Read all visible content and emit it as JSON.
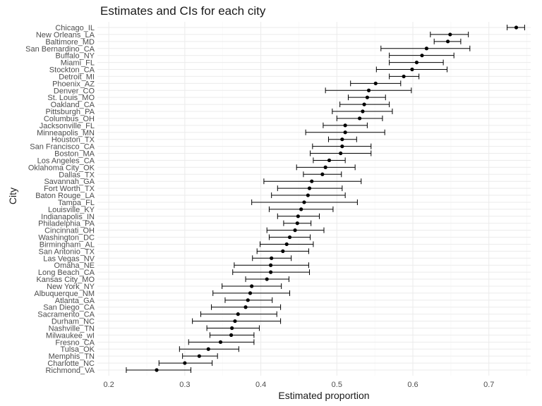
{
  "chart_data": {
    "type": "scatter",
    "title": "Estimates and CIs for each city",
    "xlabel": "Estimated proportion",
    "ylabel": "City",
    "xlim": [
      0.185,
      0.755
    ],
    "xticks": [
      "0.2",
      "0.3",
      "0.4",
      "0.5",
      "0.6",
      "0.7"
    ],
    "xtick_values": [
      0.2,
      0.3,
      0.4,
      0.5,
      0.6,
      0.7
    ],
    "grid": true,
    "points": [
      {
        "city": "Chicago_IL",
        "estimate": 0.736,
        "lo": 0.724,
        "hi": 0.747
      },
      {
        "city": "New Orleans_LA",
        "estimate": 0.649,
        "lo": 0.623,
        "hi": 0.673
      },
      {
        "city": "Baltimore_MD",
        "estimate": 0.646,
        "lo": 0.628,
        "hi": 0.663
      },
      {
        "city": "San Bernardino_CA",
        "estimate": 0.618,
        "lo": 0.558,
        "hi": 0.675
      },
      {
        "city": "Buffalo_NY",
        "estimate": 0.612,
        "lo": 0.569,
        "hi": 0.654
      },
      {
        "city": "Miami_FL",
        "estimate": 0.605,
        "lo": 0.569,
        "hi": 0.64
      },
      {
        "city": "Stockton_CA",
        "estimate": 0.599,
        "lo": 0.552,
        "hi": 0.645
      },
      {
        "city": "Detroit_MI",
        "estimate": 0.588,
        "lo": 0.569,
        "hi": 0.608
      },
      {
        "city": "Phoenix_AZ",
        "estimate": 0.551,
        "lo": 0.518,
        "hi": 0.584
      },
      {
        "city": "Denver_CO",
        "estimate": 0.542,
        "lo": 0.485,
        "hi": 0.598
      },
      {
        "city": "St. Louis_MO",
        "estimate": 0.54,
        "lo": 0.515,
        "hi": 0.564
      },
      {
        "city": "Oakland_CA",
        "estimate": 0.536,
        "lo": 0.504,
        "hi": 0.569
      },
      {
        "city": "Pittsburgh_PA",
        "estimate": 0.534,
        "lo": 0.494,
        "hi": 0.573
      },
      {
        "city": "Columbus_OH",
        "estimate": 0.53,
        "lo": 0.5,
        "hi": 0.56
      },
      {
        "city": "Jacksonville_FL",
        "estimate": 0.511,
        "lo": 0.482,
        "hi": 0.54
      },
      {
        "city": "Minneapolis_MN",
        "estimate": 0.511,
        "lo": 0.459,
        "hi": 0.563
      },
      {
        "city": "Houston_TX",
        "estimate": 0.507,
        "lo": 0.489,
        "hi": 0.526
      },
      {
        "city": "San Francisco_CA",
        "estimate": 0.507,
        "lo": 0.468,
        "hi": 0.545
      },
      {
        "city": "Boston_MA",
        "estimate": 0.505,
        "lo": 0.465,
        "hi": 0.545
      },
      {
        "city": "Los Angeles_CA",
        "estimate": 0.49,
        "lo": 0.469,
        "hi": 0.511
      },
      {
        "city": "Oklahoma City_OK",
        "estimate": 0.485,
        "lo": 0.447,
        "hi": 0.524
      },
      {
        "city": "Dallas_TX",
        "estimate": 0.481,
        "lo": 0.456,
        "hi": 0.506
      },
      {
        "city": "Savannah_GA",
        "estimate": 0.467,
        "lo": 0.404,
        "hi": 0.532
      },
      {
        "city": "Fort Worth_TX",
        "estimate": 0.464,
        "lo": 0.422,
        "hi": 0.507
      },
      {
        "city": "Baton Rouge_LA",
        "estimate": 0.462,
        "lo": 0.414,
        "hi": 0.511
      },
      {
        "city": "Tampa_FL",
        "estimate": 0.457,
        "lo": 0.388,
        "hi": 0.527
      },
      {
        "city": "Louisville_KY",
        "estimate": 0.453,
        "lo": 0.411,
        "hi": 0.495
      },
      {
        "city": "Indianapolis_IN",
        "estimate": 0.449,
        "lo": 0.422,
        "hi": 0.477
      },
      {
        "city": "Philadelphia_PA",
        "estimate": 0.448,
        "lo": 0.43,
        "hi": 0.466
      },
      {
        "city": "Cincinnati_OH",
        "estimate": 0.445,
        "lo": 0.408,
        "hi": 0.483
      },
      {
        "city": "Washington_DC",
        "estimate": 0.438,
        "lo": 0.411,
        "hi": 0.465
      },
      {
        "city": "Birmingham_AL",
        "estimate": 0.434,
        "lo": 0.399,
        "hi": 0.469
      },
      {
        "city": "San Antonio_TX",
        "estimate": 0.429,
        "lo": 0.395,
        "hi": 0.463
      },
      {
        "city": "Las Vegas_NV",
        "estimate": 0.414,
        "lo": 0.389,
        "hi": 0.44
      },
      {
        "city": "Omaha_NE",
        "estimate": 0.413,
        "lo": 0.365,
        "hi": 0.463
      },
      {
        "city": "Long Beach_CA",
        "estimate": 0.413,
        "lo": 0.363,
        "hi": 0.464
      },
      {
        "city": "Kansas City_MO",
        "estimate": 0.408,
        "lo": 0.38,
        "hi": 0.437
      },
      {
        "city": "New York_NY",
        "estimate": 0.388,
        "lo": 0.349,
        "hi": 0.427
      },
      {
        "city": "Albuquerque_NM",
        "estimate": 0.386,
        "lo": 0.337,
        "hi": 0.438
      },
      {
        "city": "Atlanta_GA",
        "estimate": 0.383,
        "lo": 0.353,
        "hi": 0.415
      },
      {
        "city": "San Diego_CA",
        "estimate": 0.38,
        "lo": 0.335,
        "hi": 0.426
      },
      {
        "city": "Sacramento_CA",
        "estimate": 0.37,
        "lo": 0.321,
        "hi": 0.421
      },
      {
        "city": "Durham_NC",
        "estimate": 0.366,
        "lo": 0.31,
        "hi": 0.426
      },
      {
        "city": "Nashville_TN",
        "estimate": 0.362,
        "lo": 0.329,
        "hi": 0.398
      },
      {
        "city": "Milwaukee_wI",
        "estimate": 0.361,
        "lo": 0.333,
        "hi": 0.391
      },
      {
        "city": "Fresno_CA",
        "estimate": 0.347,
        "lo": 0.305,
        "hi": 0.391
      },
      {
        "city": "Tulsa_OK",
        "estimate": 0.331,
        "lo": 0.293,
        "hi": 0.371
      },
      {
        "city": "Memphis_TN",
        "estimate": 0.319,
        "lo": 0.297,
        "hi": 0.343
      },
      {
        "city": "Charlotte_NC",
        "estimate": 0.3,
        "lo": 0.266,
        "hi": 0.336
      },
      {
        "city": "Richmond_VA",
        "estimate": 0.263,
        "lo": 0.223,
        "hi": 0.308
      }
    ]
  }
}
